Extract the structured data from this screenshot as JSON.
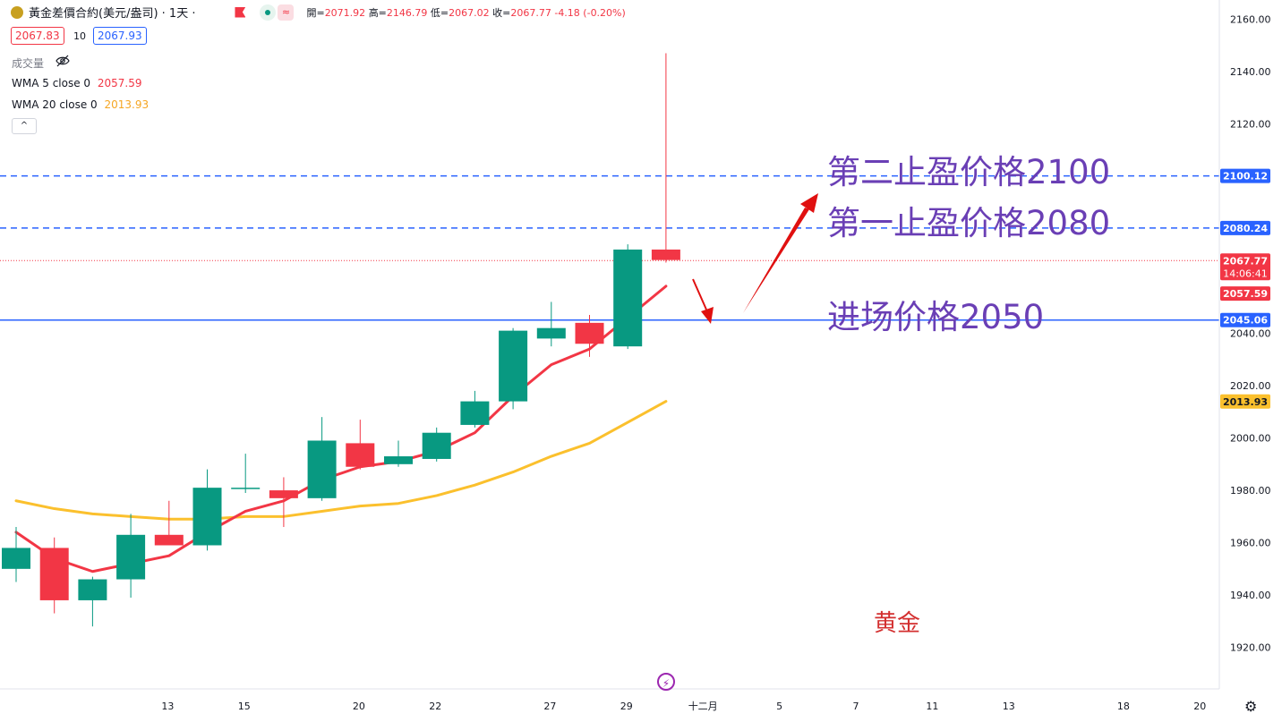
{
  "header": {
    "symbol": "黃金差價合約(美元/盎司) · 1天 ·",
    "open_label": "開=",
    "open": "2071.92",
    "high_label": "高=",
    "high": "2146.79",
    "low_label": "低=",
    "low": "2067.02",
    "close_label": "收=",
    "close": "2067.77",
    "change": "-4.18 (-0.20%)",
    "bid": "2067.83",
    "spread": "10",
    "ask": "2067.93",
    "volume_label": "成交量",
    "wma5_label": "WMA 5 close 0",
    "wma5_value": "2057.59",
    "wma20_label": "WMA 20 close 0",
    "wma20_value": "2013.93",
    "collapse_glyph": "^"
  },
  "annotations": {
    "tp2": "第二止盈价格2100",
    "tp1": "第一止盈价格2080",
    "entry": "进场价格2050",
    "asset": "黄金"
  },
  "chart_data": {
    "type": "candlestick",
    "ylim": [
      1912,
      2167
    ],
    "y_ticks": [
      1920,
      1940,
      1960,
      1980,
      2000,
      2020,
      2040,
      2120,
      2140,
      2160
    ],
    "y_tick_labels": [
      "1920.00",
      "1940.00",
      "1960.00",
      "1980.00",
      "2000.00",
      "2020.00",
      "2040.00",
      "2120.00",
      "2140.00",
      "2160.00"
    ],
    "x_ticks": [
      {
        "label": "13",
        "index": 2
      },
      {
        "label": "15",
        "index": 4
      },
      {
        "label": "20",
        "index": 7
      },
      {
        "label": "22",
        "index": 9
      },
      {
        "label": "27",
        "index": 12
      },
      {
        "label": "29",
        "index": 14
      },
      {
        "label": "十二月",
        "index": 16
      },
      {
        "label": "5",
        "index": 18
      },
      {
        "label": "7",
        "index": 20
      },
      {
        "label": "11",
        "index": 22
      },
      {
        "label": "13",
        "index": 24
      },
      {
        "label": "18",
        "index": 27
      },
      {
        "label": "20",
        "index": 29
      }
    ],
    "candles": [
      {
        "o": 1950,
        "h": 1966,
        "l": 1945,
        "c": 1958
      },
      {
        "o": 1958,
        "h": 1962,
        "l": 1933,
        "c": 1938
      },
      {
        "o": 1938,
        "h": 1947,
        "l": 1928,
        "c": 1946
      },
      {
        "o": 1946,
        "h": 1971,
        "l": 1939,
        "c": 1963
      },
      {
        "o": 1963,
        "h": 1976,
        "l": 1959,
        "c": 1959
      },
      {
        "o": 1959,
        "h": 1988,
        "l": 1957,
        "c": 1981
      },
      {
        "o": 1981,
        "h": 1994,
        "l": 1979,
        "c": 1981
      },
      {
        "o": 1980,
        "h": 1985,
        "l": 1966,
        "c": 1977
      },
      {
        "o": 1977,
        "h": 2008,
        "l": 1976,
        "c": 1999
      },
      {
        "o": 1998,
        "h": 2007,
        "l": 1988,
        "c": 1989
      },
      {
        "o": 1990,
        "h": 1999,
        "l": 1989,
        "c": 1993
      },
      {
        "o": 1992,
        "h": 2004,
        "l": 1991,
        "c": 2002
      },
      {
        "o": 2005,
        "h": 2018,
        "l": 2004,
        "c": 2014
      },
      {
        "o": 2014,
        "h": 2042,
        "l": 2011,
        "c": 2041
      },
      {
        "o": 2038,
        "h": 2052,
        "l": 2035,
        "c": 2042
      },
      {
        "o": 2044,
        "h": 2047,
        "l": 2031,
        "c": 2036
      },
      {
        "o": 2035,
        "h": 2074,
        "l": 2034,
        "c": 2072
      },
      {
        "o": 2072,
        "h": 2147,
        "l": 2067,
        "c": 2068
      }
    ],
    "wma5": [
      1964,
      1954,
      1949,
      1952,
      1955,
      1964,
      1972,
      1976,
      1984,
      1989,
      1991,
      1995,
      2002,
      2016,
      2028,
      2034,
      2046,
      2058
    ],
    "wma20": [
      1976,
      1973,
      1971,
      1970,
      1969,
      1969,
      1970,
      1970,
      1972,
      1974,
      1975,
      1978,
      1982,
      1987,
      1993,
      1998,
      2006,
      2014
    ],
    "levels": [
      {
        "value": 2100.12,
        "label": "2100.12",
        "style": "dashed",
        "color": "#2962ff"
      },
      {
        "value": 2080.24,
        "label": "2080.24",
        "style": "dashed",
        "color": "#2962ff"
      },
      {
        "value": 2045.06,
        "label": "2045.06",
        "style": "solid",
        "color": "#2962ff"
      }
    ],
    "last_price": {
      "value": 2067.77,
      "label": "2067.77",
      "countdown": "14:06:41",
      "color": "#f23645"
    },
    "wma5_tag": {
      "value": 2057.59,
      "label": "2057.59",
      "color": "#f23645"
    },
    "wma20_tag": {
      "value": 2013.93,
      "label": "2013.93",
      "color": "#fbc02d"
    },
    "colors": {
      "up": "#089981",
      "down": "#f23645",
      "wma5": "#f23645",
      "wma20": "#fbc02d",
      "arrow": "#e01010"
    }
  }
}
